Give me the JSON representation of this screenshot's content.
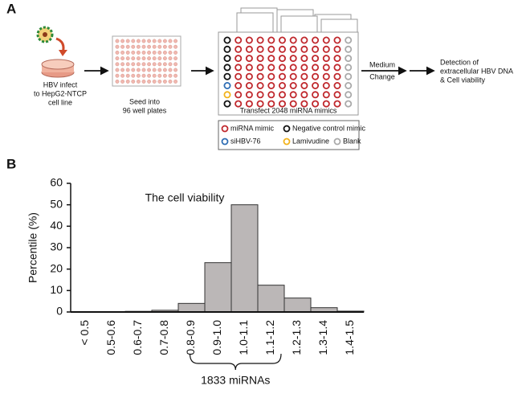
{
  "panel_labels": [
    "A",
    "B"
  ],
  "steps": [
    {
      "lines": [
        "HBV infect",
        "to HepG2-NTCP",
        "cell line"
      ]
    },
    {
      "lines": [
        "Seed into",
        "96 well plates"
      ]
    },
    {
      "lines": [
        "Transfect 2048 miRNA mimics"
      ]
    },
    {
      "lines": [
        "Medium",
        "Change"
      ]
    },
    {
      "lines": [
        "Detection of",
        "extracellular HBV DNA",
        "& Cell viability"
      ]
    }
  ],
  "legend": [
    {
      "label": "miRNA mimic",
      "color": "#c0282d"
    },
    {
      "label": "Negative control mimic",
      "color": "#111111"
    },
    {
      "label": "siHBV-76",
      "color": "#2e6db4"
    },
    {
      "label": "Lamivudine",
      "color": "#f2b21b"
    },
    {
      "label": "Blank",
      "color": "#aaaaaa"
    }
  ],
  "chart_data": {
    "type": "bar",
    "title": "The cell viability",
    "y_label": "Percentile (%)",
    "categories": [
      "< 0.5",
      "0.5-0.6",
      "0.6-0.7",
      "0.7-0.8",
      "0.8-0.9",
      "0.9-1.0",
      "1.0-1.1",
      "1.1-1.2",
      "1.2-1.3",
      "1.3-1.4",
      "1.4-1.5"
    ],
    "values": [
      0.1,
      0.1,
      0.3,
      0.8,
      4,
      23,
      50,
      12.5,
      6.5,
      2,
      0.4
    ],
    "color": "#bbb7b7",
    "ylim": [
      0,
      60
    ],
    "yticks": [
      0,
      10,
      20,
      30,
      40,
      50,
      60
    ],
    "annotation": "1833 miRNAs"
  }
}
